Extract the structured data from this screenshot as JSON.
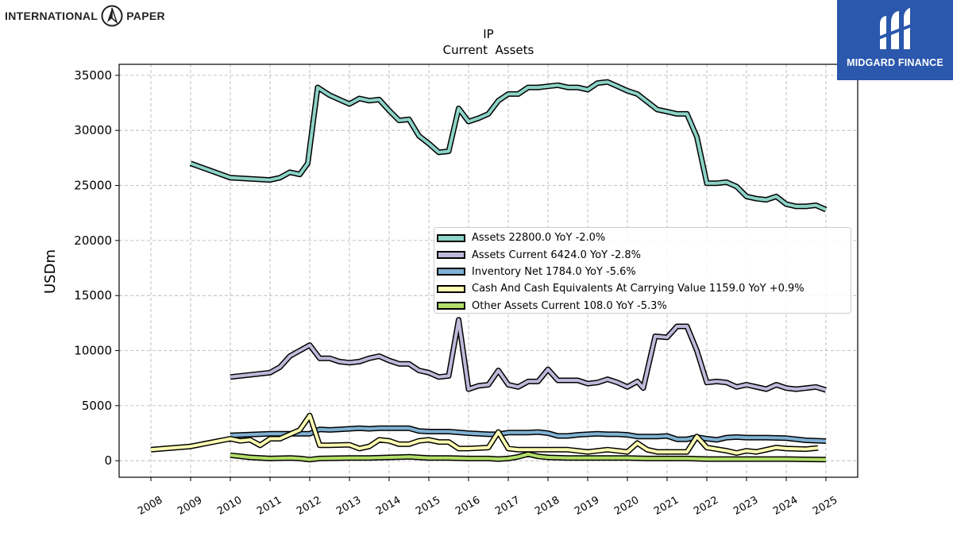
{
  "brand": {
    "company": "INTERNATIONAL PAPER",
    "company_left": "INTERNATIONAL",
    "company_right": "PAPER",
    "logo_icon": "ip-compass-icon"
  },
  "badge": {
    "text": "MIDGARD FINANCE",
    "icon": "midgard-logo-icon",
    "color": "#2b57ad"
  },
  "chart_data": {
    "type": "line",
    "title": "IP",
    "subtitle": "Current  Assets",
    "ylabel": "USDm",
    "xlabel": "",
    "xlim": [
      2007.2,
      2025.8
    ],
    "ylim": [
      -1500,
      36000
    ],
    "yticks": [
      0,
      5000,
      10000,
      15000,
      20000,
      25000,
      30000,
      35000
    ],
    "xticks": [
      "2008",
      "2009",
      "2010",
      "2011",
      "2012",
      "2013",
      "2014",
      "2015",
      "2016",
      "2017",
      "2018",
      "2019",
      "2020",
      "2021",
      "2022",
      "2023",
      "2024",
      "2025"
    ],
    "grid": true,
    "legend_position": "center-right",
    "series": [
      {
        "name": "Assets  22800.0 YoY -2.0%",
        "color": "#8dd3c7",
        "points": [
          [
            2009.0,
            27000
          ],
          [
            2010.0,
            25700
          ],
          [
            2011.0,
            25500
          ],
          [
            2011.25,
            25700
          ],
          [
            2011.5,
            26200
          ],
          [
            2011.75,
            26000
          ],
          [
            2011.95,
            27000
          ],
          [
            2012.2,
            33900
          ],
          [
            2012.5,
            33200
          ],
          [
            2012.75,
            32800
          ],
          [
            2013.0,
            32400
          ],
          [
            2013.25,
            32900
          ],
          [
            2013.5,
            32700
          ],
          [
            2013.75,
            32800
          ],
          [
            2014.0,
            31800
          ],
          [
            2014.25,
            30900
          ],
          [
            2014.5,
            31000
          ],
          [
            2014.75,
            29500
          ],
          [
            2015.0,
            28800
          ],
          [
            2015.25,
            28000
          ],
          [
            2015.5,
            28100
          ],
          [
            2015.75,
            32000
          ],
          [
            2016.0,
            30800
          ],
          [
            2016.25,
            31100
          ],
          [
            2016.5,
            31500
          ],
          [
            2016.75,
            32700
          ],
          [
            2017.0,
            33300
          ],
          [
            2017.25,
            33300
          ],
          [
            2017.5,
            33900
          ],
          [
            2017.75,
            33900
          ],
          [
            2018.0,
            34000
          ],
          [
            2018.25,
            34100
          ],
          [
            2018.5,
            33900
          ],
          [
            2018.75,
            33900
          ],
          [
            2019.0,
            33700
          ],
          [
            2019.25,
            34300
          ],
          [
            2019.5,
            34400
          ],
          [
            2019.75,
            34000
          ],
          [
            2020.0,
            33600
          ],
          [
            2020.25,
            33300
          ],
          [
            2020.5,
            32600
          ],
          [
            2020.75,
            31900
          ],
          [
            2021.0,
            31700
          ],
          [
            2021.25,
            31500
          ],
          [
            2021.5,
            31500
          ],
          [
            2021.75,
            29400
          ],
          [
            2022.0,
            25200
          ],
          [
            2022.25,
            25200
          ],
          [
            2022.5,
            25300
          ],
          [
            2022.75,
            24900
          ],
          [
            2023.0,
            24000
          ],
          [
            2023.25,
            23800
          ],
          [
            2023.5,
            23700
          ],
          [
            2023.75,
            24000
          ],
          [
            2024.0,
            23300
          ],
          [
            2024.25,
            23100
          ],
          [
            2024.5,
            23100
          ],
          [
            2024.75,
            23200
          ],
          [
            2025.0,
            22800
          ]
        ]
      },
      {
        "name": "Assets Current  6424.0 YoY -2.8%",
        "color": "#bebada",
        "points": [
          [
            2010.0,
            7600
          ],
          [
            2011.0,
            8000
          ],
          [
            2011.25,
            8500
          ],
          [
            2011.5,
            9500
          ],
          [
            2011.75,
            10000
          ],
          [
            2012.0,
            10500
          ],
          [
            2012.25,
            9300
          ],
          [
            2012.5,
            9300
          ],
          [
            2012.75,
            9000
          ],
          [
            2013.0,
            8900
          ],
          [
            2013.25,
            9000
          ],
          [
            2013.5,
            9300
          ],
          [
            2013.75,
            9500
          ],
          [
            2014.0,
            9100
          ],
          [
            2014.25,
            8800
          ],
          [
            2014.5,
            8800
          ],
          [
            2014.75,
            8200
          ],
          [
            2015.0,
            8000
          ],
          [
            2015.25,
            7600
          ],
          [
            2015.5,
            7700
          ],
          [
            2015.75,
            12800
          ],
          [
            2016.0,
            6500
          ],
          [
            2016.25,
            6800
          ],
          [
            2016.5,
            6900
          ],
          [
            2016.75,
            8200
          ],
          [
            2017.0,
            6900
          ],
          [
            2017.25,
            6700
          ],
          [
            2017.5,
            7200
          ],
          [
            2017.75,
            7200
          ],
          [
            2018.0,
            8300
          ],
          [
            2018.25,
            7300
          ],
          [
            2018.5,
            7300
          ],
          [
            2018.75,
            7300
          ],
          [
            2019.0,
            7000
          ],
          [
            2019.25,
            7100
          ],
          [
            2019.5,
            7400
          ],
          [
            2019.75,
            7100
          ],
          [
            2020.0,
            6700
          ],
          [
            2020.25,
            7200
          ],
          [
            2020.4,
            6600
          ],
          [
            2020.7,
            11300
          ],
          [
            2021.0,
            11200
          ],
          [
            2021.25,
            12200
          ],
          [
            2021.5,
            12200
          ],
          [
            2021.75,
            10000
          ],
          [
            2022.0,
            7100
          ],
          [
            2022.25,
            7200
          ],
          [
            2022.5,
            7100
          ],
          [
            2022.75,
            6700
          ],
          [
            2023.0,
            6900
          ],
          [
            2023.25,
            6700
          ],
          [
            2023.5,
            6500
          ],
          [
            2023.75,
            6900
          ],
          [
            2024.0,
            6600
          ],
          [
            2024.25,
            6500
          ],
          [
            2024.5,
            6600
          ],
          [
            2024.75,
            6700
          ],
          [
            2025.0,
            6424
          ]
        ]
      },
      {
        "name": "Inventory Net  1784.0 YoY -5.6%",
        "color": "#80b1d3",
        "points": [
          [
            2010.0,
            2300
          ],
          [
            2011.0,
            2450
          ],
          [
            2011.5,
            2450
          ],
          [
            2012.0,
            2450
          ],
          [
            2012.25,
            2850
          ],
          [
            2012.5,
            2800
          ],
          [
            2012.75,
            2850
          ],
          [
            2013.0,
            2900
          ],
          [
            2013.25,
            2950
          ],
          [
            2013.5,
            2900
          ],
          [
            2013.75,
            2950
          ],
          [
            2014.0,
            2950
          ],
          [
            2014.5,
            2950
          ],
          [
            2014.75,
            2700
          ],
          [
            2015.0,
            2650
          ],
          [
            2015.5,
            2650
          ],
          [
            2016.0,
            2500
          ],
          [
            2016.5,
            2400
          ],
          [
            2016.75,
            2400
          ],
          [
            2017.0,
            2550
          ],
          [
            2017.5,
            2550
          ],
          [
            2017.75,
            2600
          ],
          [
            2018.0,
            2500
          ],
          [
            2018.25,
            2250
          ],
          [
            2018.5,
            2250
          ],
          [
            2018.75,
            2350
          ],
          [
            2019.0,
            2400
          ],
          [
            2019.25,
            2450
          ],
          [
            2019.5,
            2400
          ],
          [
            2019.75,
            2400
          ],
          [
            2020.0,
            2350
          ],
          [
            2020.25,
            2200
          ],
          [
            2020.5,
            2200
          ],
          [
            2020.75,
            2200
          ],
          [
            2021.0,
            2250
          ],
          [
            2021.25,
            1950
          ],
          [
            2021.5,
            1950
          ],
          [
            2021.75,
            2150
          ],
          [
            2022.0,
            2000
          ],
          [
            2022.25,
            1900
          ],
          [
            2022.5,
            2100
          ],
          [
            2022.75,
            2150
          ],
          [
            2023.0,
            2100
          ],
          [
            2023.5,
            2100
          ],
          [
            2024.0,
            2050
          ],
          [
            2024.5,
            1850
          ],
          [
            2025.0,
            1784
          ]
        ]
      },
      {
        "name": "Cash And Cash Equivalents At Carrying Value  1159.0 YoY +0.9%",
        "color": "#ffffb3",
        "points": [
          [
            2008.0,
            1000
          ],
          [
            2009.0,
            1300
          ],
          [
            2010.0,
            2000
          ],
          [
            2010.25,
            1800
          ],
          [
            2010.5,
            1900
          ],
          [
            2010.75,
            1400
          ],
          [
            2011.0,
            2000
          ],
          [
            2011.25,
            2000
          ],
          [
            2011.75,
            2800
          ],
          [
            2012.0,
            4100
          ],
          [
            2012.25,
            1400
          ],
          [
            2012.5,
            1400
          ],
          [
            2013.0,
            1450
          ],
          [
            2013.25,
            1100
          ],
          [
            2013.5,
            1300
          ],
          [
            2013.75,
            1900
          ],
          [
            2014.0,
            1800
          ],
          [
            2014.25,
            1500
          ],
          [
            2014.5,
            1500
          ],
          [
            2014.75,
            1800
          ],
          [
            2015.0,
            1900
          ],
          [
            2015.25,
            1700
          ],
          [
            2015.5,
            1700
          ],
          [
            2015.75,
            1100
          ],
          [
            2016.0,
            1100
          ],
          [
            2016.5,
            1200
          ],
          [
            2016.75,
            2600
          ],
          [
            2017.0,
            1100
          ],
          [
            2017.25,
            1000
          ],
          [
            2017.5,
            1000
          ],
          [
            2017.75,
            1000
          ],
          [
            2018.0,
            1000
          ],
          [
            2018.5,
            1000
          ],
          [
            2018.75,
            900
          ],
          [
            2019.0,
            800
          ],
          [
            2019.25,
            900
          ],
          [
            2019.5,
            1000
          ],
          [
            2019.75,
            900
          ],
          [
            2020.0,
            800
          ],
          [
            2020.25,
            1600
          ],
          [
            2020.5,
            1000
          ],
          [
            2020.75,
            800
          ],
          [
            2021.0,
            800
          ],
          [
            2021.5,
            800
          ],
          [
            2021.75,
            2200
          ],
          [
            2022.0,
            1200
          ],
          [
            2022.5,
            900
          ],
          [
            2022.75,
            700
          ],
          [
            2023.0,
            900
          ],
          [
            2023.25,
            800
          ],
          [
            2023.5,
            1000
          ],
          [
            2023.75,
            1200
          ],
          [
            2024.0,
            1100
          ],
          [
            2024.5,
            1050
          ],
          [
            2024.8,
            1159
          ]
        ]
      },
      {
        "name": "Other Assets Current  108.0 YoY -5.3%",
        "color": "#b3de69",
        "points": [
          [
            2010.0,
            500
          ],
          [
            2010.5,
            300
          ],
          [
            2011.0,
            200
          ],
          [
            2011.5,
            250
          ],
          [
            2011.75,
            200
          ],
          [
            2012.0,
            100
          ],
          [
            2012.25,
            200
          ],
          [
            2013.0,
            250
          ],
          [
            2013.5,
            250
          ],
          [
            2014.0,
            300
          ],
          [
            2014.5,
            350
          ],
          [
            2015.0,
            250
          ],
          [
            2015.5,
            250
          ],
          [
            2016.0,
            200
          ],
          [
            2016.5,
            200
          ],
          [
            2016.75,
            150
          ],
          [
            2017.0,
            200
          ],
          [
            2017.25,
            350
          ],
          [
            2017.5,
            600
          ],
          [
            2017.75,
            400
          ],
          [
            2018.0,
            300
          ],
          [
            2018.5,
            250
          ],
          [
            2019.0,
            250
          ],
          [
            2019.5,
            250
          ],
          [
            2020.0,
            250
          ],
          [
            2020.5,
            200
          ],
          [
            2021.0,
            200
          ],
          [
            2021.5,
            200
          ],
          [
            2022.0,
            150
          ],
          [
            2022.5,
            150
          ],
          [
            2023.0,
            150
          ],
          [
            2023.5,
            150
          ],
          [
            2024.0,
            150
          ],
          [
            2024.5,
            120
          ],
          [
            2025.0,
            108
          ]
        ]
      }
    ]
  }
}
